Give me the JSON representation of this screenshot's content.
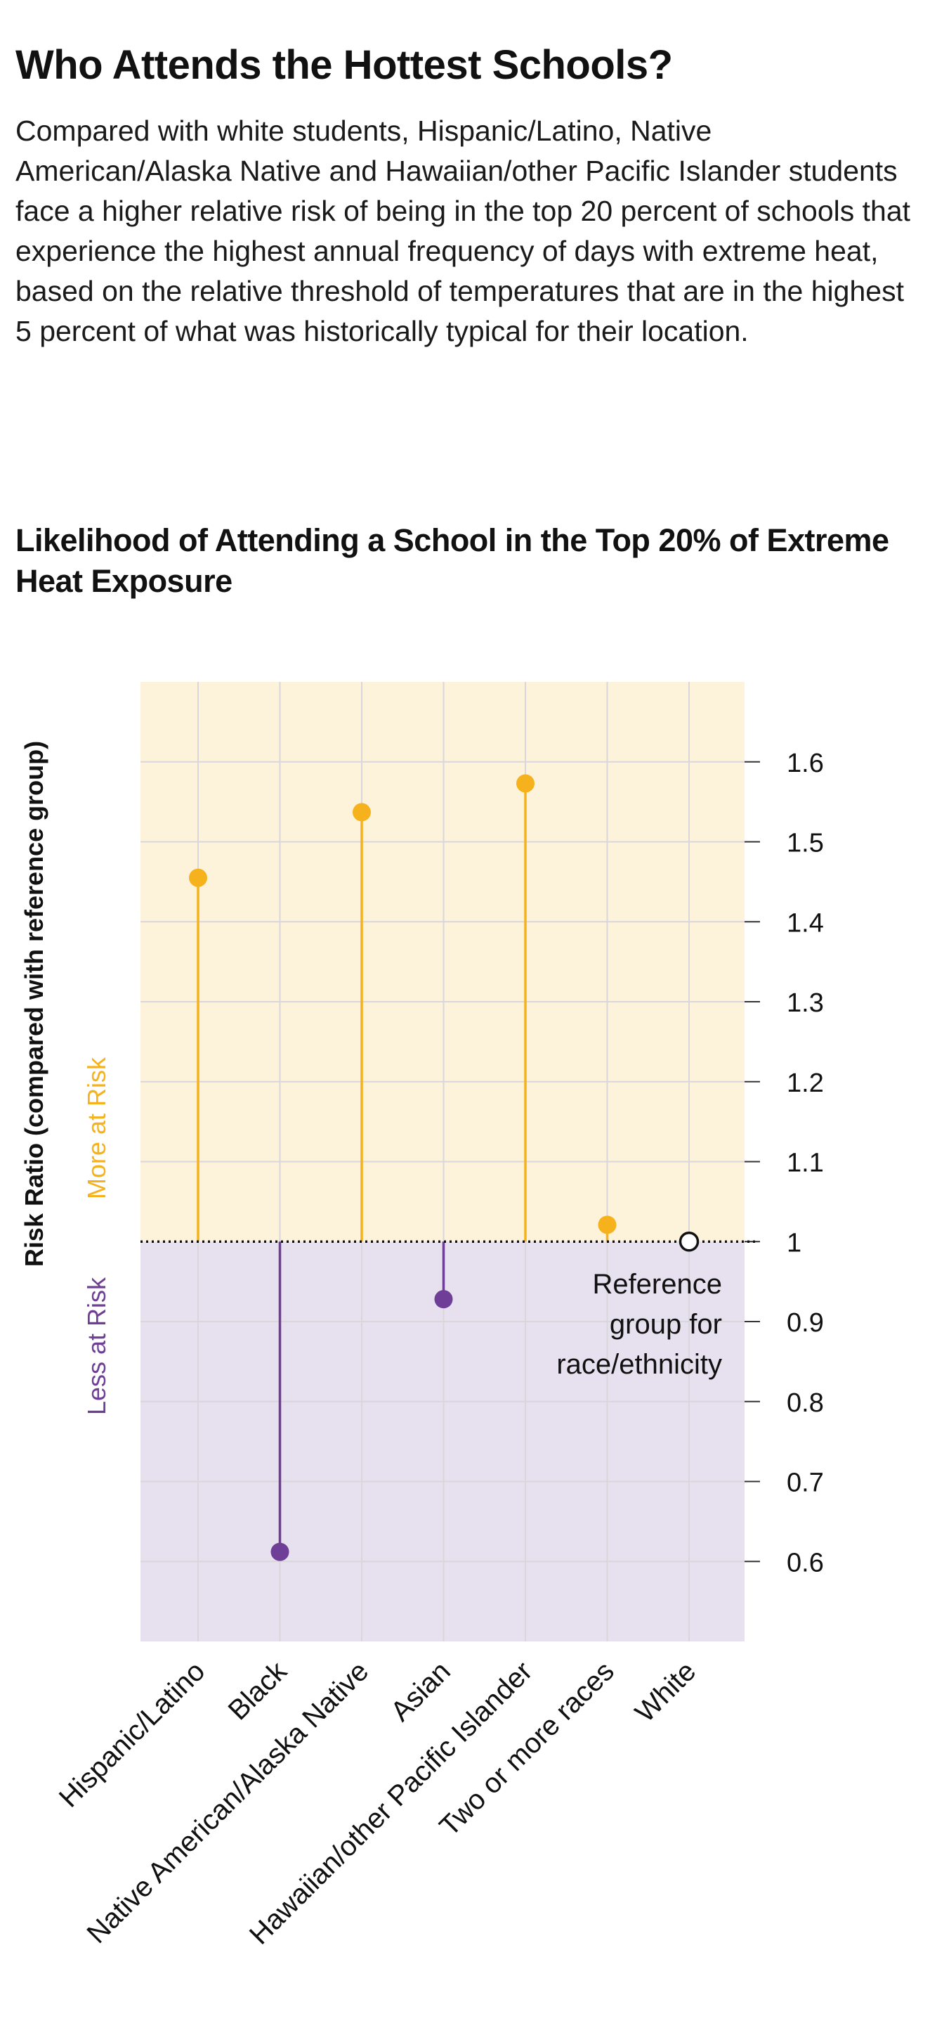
{
  "title": "Who Attends the Hottest Schools?",
  "intro": "Compared with white students, Hispanic/Latino, Native American/Alaska Native and Hawaiian/other Pacific Islander students face a higher relative risk of being in the top 20 percent of schools that experience the highest annual frequency of days with extreme heat, based on the relative threshold of temperatures that are in the highest 5 percent of what was historically typical for their location.",
  "colors": {
    "more_risk": "#f5b21c",
    "less_risk": "#6f3f98",
    "more_band": "#fdf2da",
    "less_band": "#e7e0ee",
    "gridline": "#d9d6dc"
  },
  "chart_data": {
    "type": "lollipop",
    "title": "Likelihood of Attending a School in the Top 20% of Extreme Heat Exposure",
    "ylabel": "Risk Ratio (compared with reference group)",
    "ylim": [
      0.5,
      1.7
    ],
    "yticks": [
      0.6,
      0.7,
      0.8,
      0.9,
      1,
      1.1,
      1.2,
      1.3,
      1.4,
      1.5,
      1.6
    ],
    "ytick_labels": [
      "0.6",
      "0.7",
      "0.8",
      "0.9",
      "1",
      "1.1",
      "1.2",
      "1.3",
      "1.4",
      "1.5",
      "1.6"
    ],
    "baseline": 1,
    "categories": [
      "Hispanic/Latino",
      "Black",
      "Native American/Alaska Native",
      "Asian",
      "Hawaiian/other Pacific Islander",
      "Two or more races",
      "White"
    ],
    "values": [
      1.455,
      0.612,
      1.537,
      0.928,
      1.573,
      1.021,
      1.0
    ],
    "reference_category": "White",
    "band_labels": {
      "more": "More at Risk",
      "less": "Less at Risk"
    },
    "annotation": [
      "Reference",
      "group for",
      "race/ethnicity"
    ],
    "grid": true
  }
}
